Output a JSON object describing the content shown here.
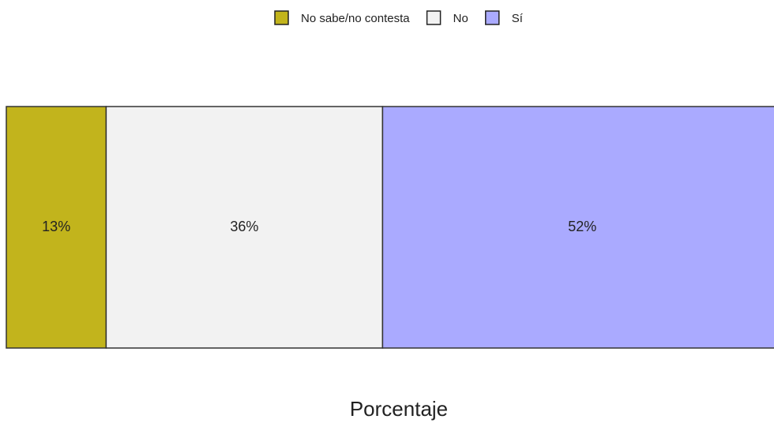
{
  "chart_data": {
    "type": "stacked_bar",
    "orientation": "horizontal",
    "categories": [
      null
    ],
    "series": [
      {
        "name": "No sabe/no contesta",
        "color": "#c2b41c",
        "values": [
          13
        ],
        "value_labels": [
          "13%"
        ]
      },
      {
        "name": "No",
        "color": "#f2f2f2",
        "values": [
          36
        ],
        "value_labels": [
          "36%"
        ]
      },
      {
        "name": "Sí",
        "color": "#aaaaff",
        "values": [
          52
        ],
        "value_labels": [
          "52%"
        ]
      }
    ],
    "xlabel": "Porcentaje",
    "xlim": [
      0,
      101
    ],
    "legend": "top"
  }
}
